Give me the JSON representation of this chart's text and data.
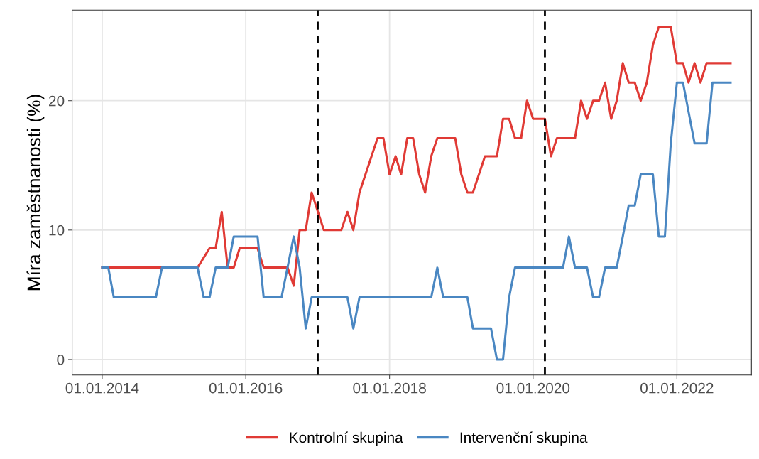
{
  "chart_data": {
    "type": "line",
    "ylabel": "Míra zaměstnanosti (%)",
    "xlim": [
      "2013-08-01",
      "2023-01-15"
    ],
    "ylim": [
      -1.2,
      27
    ],
    "xticks": [
      {
        "value": "2014-01-01",
        "label": "01.01.2014"
      },
      {
        "value": "2016-01-01",
        "label": "01.01.2016"
      },
      {
        "value": "2018-01-01",
        "label": "01.01.2018"
      },
      {
        "value": "2020-01-01",
        "label": "01.01.2020"
      },
      {
        "value": "2022-01-01",
        "label": "01.01.2022"
      }
    ],
    "yticks": [
      0,
      10,
      20
    ],
    "grid": true,
    "legend": "bottom",
    "ref_lines": [
      {
        "axis": "x",
        "value": "2017-01-01",
        "color": "#000000",
        "line_style": "dashed"
      },
      {
        "axis": "x",
        "value": "2020-03-01",
        "color": "#000000",
        "line_style": "dashed"
      }
    ],
    "series": [
      {
        "name": "Kontrolní skupina",
        "color": "#e03a35",
        "x": [
          "2014-01",
          "2015-05",
          "2015-07",
          "2015-08",
          "2015-09",
          "2015-10",
          "2015-11",
          "2015-12",
          "2016-03",
          "2016-04",
          "2016-08",
          "2016-09",
          "2016-10",
          "2016-11",
          "2016-12",
          "2017-02",
          "2017-05",
          "2017-06",
          "2017-07",
          "2017-08",
          "2017-11",
          "2017-12",
          "2018-01",
          "2018-02",
          "2018-03",
          "2018-04",
          "2018-05",
          "2018-06",
          "2018-07",
          "2018-08",
          "2018-09",
          "2018-12",
          "2019-01",
          "2019-02",
          "2019-03",
          "2019-05",
          "2019-07",
          "2019-08",
          "2019-09",
          "2019-10",
          "2019-11",
          "2019-12",
          "2020-01",
          "2020-03",
          "2020-04",
          "2020-05",
          "2020-08",
          "2020-09",
          "2020-10",
          "2020-11",
          "2020-12",
          "2021-01",
          "2021-02",
          "2021-03",
          "2021-04",
          "2021-05",
          "2021-06",
          "2021-07",
          "2021-08",
          "2021-09",
          "2021-10",
          "2021-12",
          "2022-01",
          "2022-02",
          "2022-03",
          "2022-04",
          "2022-05",
          "2022-06",
          "2022-10"
        ],
        "values": [
          7.1,
          7.1,
          8.6,
          8.6,
          11.4,
          7.1,
          7.1,
          8.6,
          8.6,
          7.1,
          7.1,
          5.7,
          10,
          10,
          12.9,
          10,
          10,
          11.4,
          10,
          12.9,
          17.1,
          17.1,
          14.3,
          15.7,
          14.3,
          17.1,
          17.1,
          14.3,
          12.9,
          15.7,
          17.1,
          17.1,
          14.3,
          12.9,
          12.9,
          15.7,
          15.7,
          18.6,
          18.6,
          17.1,
          17.1,
          20,
          18.6,
          18.6,
          15.7,
          17.1,
          17.1,
          20,
          18.6,
          20,
          20,
          21.4,
          18.6,
          20,
          22.9,
          21.4,
          21.4,
          20,
          21.4,
          24.3,
          25.7,
          25.7,
          22.9,
          22.9,
          21.4,
          22.9,
          21.4,
          22.9,
          22.9
        ]
      },
      {
        "name": "Intervenční skupina",
        "color": "#4a87c2",
        "x": [
          "2014-01",
          "2014-02",
          "2014-03",
          "2014-10",
          "2014-11",
          "2015-05",
          "2015-06",
          "2015-07",
          "2015-08",
          "2015-10",
          "2015-11",
          "2016-03",
          "2016-04",
          "2016-07",
          "2016-09",
          "2016-10",
          "2016-11",
          "2016-12",
          "2017-06",
          "2017-07",
          "2017-08",
          "2018-08",
          "2018-09",
          "2018-10",
          "2019-02",
          "2019-03",
          "2019-06",
          "2019-07",
          "2019-08",
          "2019-09",
          "2019-10",
          "2020-06",
          "2020-07",
          "2020-08",
          "2020-10",
          "2020-11",
          "2020-12",
          "2021-01",
          "2021-03",
          "2021-04",
          "2021-05",
          "2021-06",
          "2021-07",
          "2021-09",
          "2021-10",
          "2021-11",
          "2021-12",
          "2022-01",
          "2022-02",
          "2022-04",
          "2022-06",
          "2022-07",
          "2022-10"
        ],
        "values": [
          7.1,
          7.1,
          4.8,
          4.8,
          7.1,
          7.1,
          4.8,
          4.8,
          7.1,
          7.1,
          9.5,
          9.5,
          4.8,
          4.8,
          9.5,
          7.1,
          2.4,
          4.8,
          4.8,
          2.4,
          4.8,
          4.8,
          7.1,
          4.8,
          4.8,
          2.4,
          2.4,
          0,
          0,
          4.8,
          7.1,
          7.1,
          9.5,
          7.1,
          7.1,
          4.8,
          4.8,
          7.1,
          7.1,
          9.5,
          11.9,
          11.9,
          14.3,
          14.3,
          9.5,
          9.5,
          16.7,
          21.4,
          21.4,
          16.7,
          16.7,
          21.4,
          21.4
        ]
      }
    ]
  }
}
